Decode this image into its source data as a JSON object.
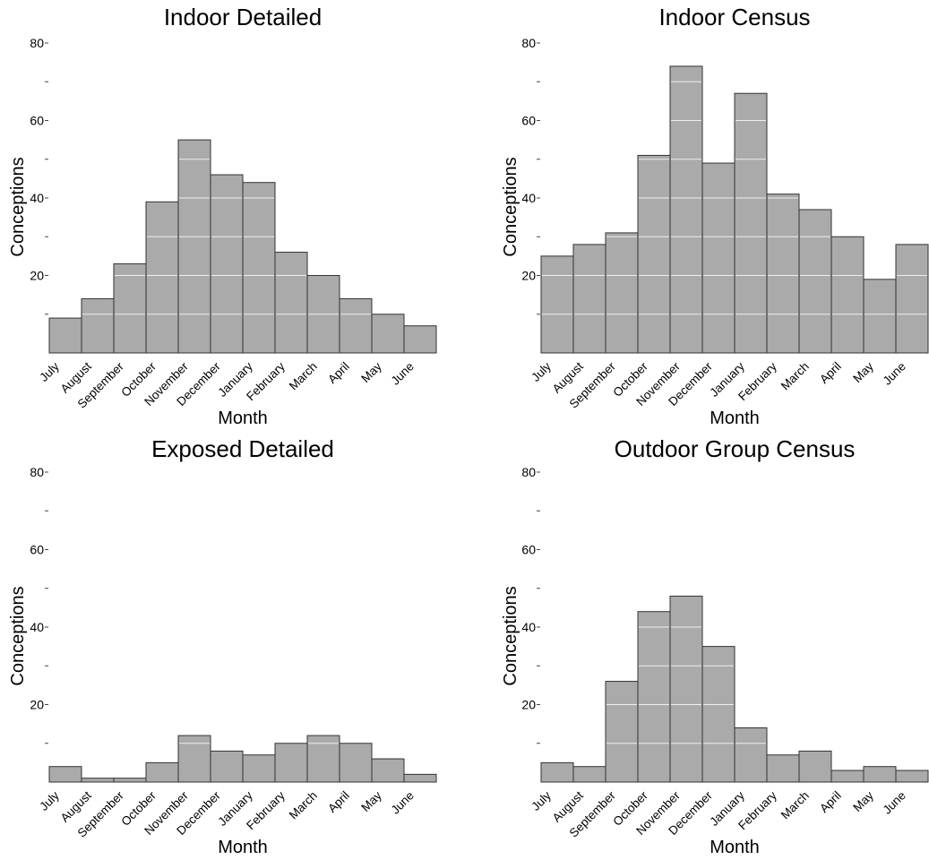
{
  "chart_data": [
    {
      "type": "bar",
      "title": "Indoor Detailed",
      "xlabel": "Month",
      "ylabel": "Conceptions",
      "categories": [
        "July",
        "August",
        "September",
        "October",
        "November",
        "December",
        "January",
        "February",
        "March",
        "April",
        "May",
        "June"
      ],
      "values": [
        9,
        14,
        23,
        39,
        55,
        46,
        44,
        26,
        20,
        14,
        10,
        7
      ],
      "ylim": [
        0,
        80
      ],
      "yticks": [
        20,
        40,
        60,
        80
      ]
    },
    {
      "type": "bar",
      "title": "Indoor Census",
      "xlabel": "Month",
      "ylabel": "Conceptions",
      "categories": [
        "July",
        "August",
        "September",
        "October",
        "November",
        "December",
        "January",
        "February",
        "March",
        "April",
        "May",
        "June"
      ],
      "values": [
        25,
        28,
        31,
        51,
        74,
        49,
        67,
        41,
        37,
        30,
        19,
        28
      ],
      "ylim": [
        0,
        80
      ],
      "yticks": [
        20,
        40,
        60,
        80
      ]
    },
    {
      "type": "bar",
      "title": "Exposed Detailed",
      "xlabel": "Month",
      "ylabel": "Conceptions",
      "categories": [
        "July",
        "August",
        "September",
        "October",
        "November",
        "December",
        "January",
        "February",
        "March",
        "April",
        "May",
        "June"
      ],
      "values": [
        4,
        1,
        1,
        5,
        12,
        8,
        7,
        10,
        12,
        10,
        6,
        2
      ],
      "ylim": [
        0,
        80
      ],
      "yticks": [
        20,
        40,
        60,
        80
      ]
    },
    {
      "type": "bar",
      "title": "Outdoor Group Census",
      "xlabel": "Month",
      "ylabel": "Conceptions",
      "categories": [
        "July",
        "August",
        "September",
        "October",
        "November",
        "December",
        "January",
        "February",
        "March",
        "April",
        "May",
        "June"
      ],
      "values": [
        5,
        4,
        26,
        44,
        48,
        35,
        14,
        7,
        8,
        3,
        4,
        3
      ],
      "ylim": [
        0,
        80
      ],
      "yticks": [
        20,
        40,
        60,
        80
      ]
    }
  ]
}
